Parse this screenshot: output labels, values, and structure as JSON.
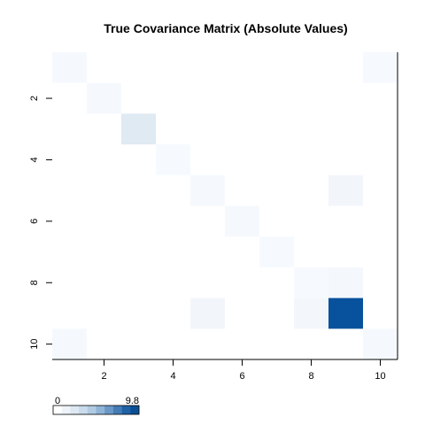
{
  "chart_data": {
    "type": "heatmap",
    "title": "True Covariance Matrix (Absolute Values)",
    "xlabel": "",
    "ylabel": "",
    "rows": 10,
    "cols": 10,
    "x_ticks": [
      2,
      4,
      6,
      8,
      10
    ],
    "y_ticks": [
      2,
      4,
      6,
      8,
      10
    ],
    "x_tick_labels": [
      "2",
      "4",
      "6",
      "8",
      "10"
    ],
    "y_tick_labels": [
      "2",
      "4",
      "6",
      "8",
      "10"
    ],
    "value_range": [
      0,
      9.8
    ],
    "colorbar": {
      "min_label": "0",
      "max_label": "9.8",
      "colors": [
        "#f7fbff",
        "#deebf7",
        "#c6dbef",
        "#9ecae1",
        "#6baed6",
        "#4292c6",
        "#2171b5",
        "#08519c",
        "#08306b",
        "#08306b"
      ]
    },
    "cells": [
      {
        "row": 1,
        "col": 1,
        "value": 0.2
      },
      {
        "row": 1,
        "col": 10,
        "value": 0.15
      },
      {
        "row": 2,
        "col": 2,
        "value": 0.2
      },
      {
        "row": 3,
        "col": 3,
        "value": 1.6
      },
      {
        "row": 4,
        "col": 4,
        "value": 0.1
      },
      {
        "row": 5,
        "col": 5,
        "value": 0.2
      },
      {
        "row": 5,
        "col": 9,
        "value": 0.6
      },
      {
        "row": 6,
        "col": 6,
        "value": 0.3
      },
      {
        "row": 7,
        "col": 7,
        "value": 0.1
      },
      {
        "row": 8,
        "col": 8,
        "value": 0.1
      },
      {
        "row": 8,
        "col": 9,
        "value": 0.4
      },
      {
        "row": 9,
        "col": 5,
        "value": 0.6
      },
      {
        "row": 9,
        "col": 8,
        "value": 0.5
      },
      {
        "row": 9,
        "col": 9,
        "value": 9.8
      },
      {
        "row": 10,
        "col": 1,
        "value": 0.2
      },
      {
        "row": 10,
        "col": 10,
        "value": 0.3
      }
    ]
  }
}
